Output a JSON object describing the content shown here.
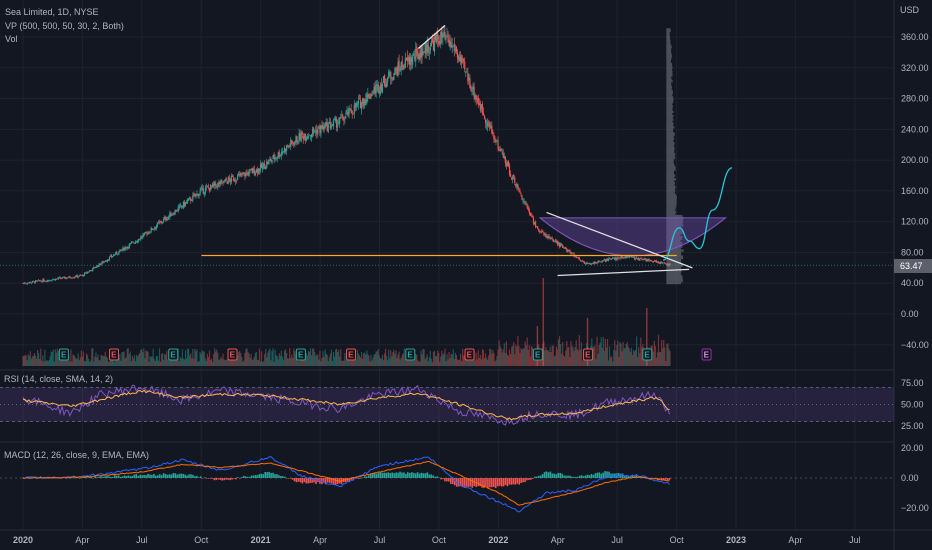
{
  "legend": {
    "main": "Sea Limited, 1D, NYSE",
    "vp": "VP (500, 500, 50, 30, 2, Both)",
    "vol": "Vol",
    "rsi": "RSI (14, close, SMA, 14, 2)",
    "macd": "MACD (12, 26, close, 9, EMA, EMA)"
  },
  "currency": "USD",
  "price_label": "63.47",
  "earnings_marker": "E",
  "colors": {
    "up": "#26a69a",
    "down": "#ef5350",
    "support": "#ffa726",
    "rsi": "#7e57c2",
    "rsi_ma": "#ffb74d",
    "macd": "#2962ff",
    "signal": "#ff6d00",
    "pattern": "#7e57c2",
    "projection": "#26c6da",
    "trendline": "#e0e0e0",
    "vp": "#787b86"
  },
  "chart_data": [
    {
      "type": "candlestick",
      "title": "Sea Limited, 1D, NYSE",
      "ylabel": "USD",
      "x_tick_labels": [
        "2020",
        "Apr",
        "Jul",
        "Oct",
        "2021",
        "Apr",
        "Jul",
        "Oct",
        "2022",
        "Apr",
        "Jul",
        "Oct",
        "2023",
        "Apr",
        "Jul"
      ],
      "y_tick_labels": [
        "360.00",
        "320.00",
        "280.00",
        "240.00",
        "200.00",
        "160.00",
        "120.00",
        "80.00",
        "40.00",
        "0.00",
        "−40.00"
      ],
      "ylim": [
        -55,
        385
      ],
      "last_close": 63.47,
      "anchors": {
        "x": [
          "2020-01-01",
          "2020-04-01",
          "2020-07-01",
          "2020-10-01",
          "2021-01-01",
          "2021-03-01",
          "2021-05-01",
          "2021-08-01",
          "2021-10-05",
          "2021-10-25",
          "2022-01-01",
          "2022-03-01",
          "2022-05-15",
          "2022-07-15",
          "2022-08-25",
          "2022-09-20"
        ],
        "close": [
          40,
          50,
          100,
          160,
          190,
          230,
          250,
          320,
          360,
          345,
          215,
          110,
          65,
          75,
          68,
          63.47
        ]
      },
      "annotations": {
        "support_line": {
          "from": "2020-10-01",
          "to": "2022-10-01",
          "value": 76
        },
        "top_trendline": [
          [
            "2021-08-30",
            345
          ],
          [
            "2021-10-10",
            375
          ]
        ],
        "upper_trendline": [
          [
            "2022-03-15",
            132
          ],
          [
            "2022-10-25",
            60
          ]
        ],
        "lower_trendline": [
          [
            "2022-04-01",
            50
          ],
          [
            "2022-10-20",
            58
          ]
        ],
        "cup_pattern": {
          "from": "2022-03-05",
          "to": "2022-12-15",
          "top": 125,
          "bottom": 65
        },
        "projection": [
          [
            "2022-09-10",
            70
          ],
          [
            "2022-10-05",
            112
          ],
          [
            "2022-10-20",
            95
          ],
          [
            "2022-11-05",
            85
          ],
          [
            "2022-11-25",
            135
          ],
          [
            "2022-12-25",
            190
          ]
        ]
      },
      "earnings_dates": [
        "2020-03-03",
        "2020-05-19",
        "2020-08-18",
        "2020-11-17",
        "2021-03-02",
        "2021-05-18",
        "2021-08-17",
        "2021-11-16",
        "2022-03-01",
        "2022-05-17",
        "2022-08-16",
        "2022-11-15"
      ]
    },
    {
      "type": "line",
      "title": "RSI (14, close, SMA, 14, 2)",
      "y_tick_labels": [
        "75.00",
        "50.00",
        "25.00"
      ],
      "ylim": [
        15,
        85
      ],
      "bands": [
        70,
        50,
        30
      ],
      "x": [
        "2020-01-01",
        "2020-03-15",
        "2020-05-01",
        "2020-07-01",
        "2020-09-01",
        "2020-11-01",
        "2021-01-01",
        "2021-03-01",
        "2021-05-01",
        "2021-07-01",
        "2021-09-01",
        "2021-11-01",
        "2022-01-15",
        "2022-03-01",
        "2022-05-01",
        "2022-06-15",
        "2022-08-01",
        "2022-09-01",
        "2022-09-22"
      ],
      "series": [
        {
          "name": "RSI",
          "values": [
            58,
            40,
            62,
            70,
            55,
            66,
            60,
            52,
            45,
            62,
            68,
            42,
            30,
            40,
            38,
            52,
            58,
            62,
            35
          ]
        },
        {
          "name": "RSI-based MA",
          "values": [
            55,
            48,
            56,
            66,
            58,
            62,
            61,
            56,
            50,
            58,
            63,
            50,
            33,
            38,
            40,
            48,
            55,
            58,
            42
          ]
        }
      ]
    },
    {
      "type": "bar+line",
      "title": "MACD (12, 26, close, 9, EMA, EMA)",
      "y_tick_labels": [
        "20.00",
        "0.00",
        "−20.00"
      ],
      "ylim": [
        -26,
        26
      ],
      "x": [
        "2020-01-01",
        "2020-04-01",
        "2020-07-01",
        "2020-09-01",
        "2020-11-01",
        "2021-01-15",
        "2021-03-01",
        "2021-05-01",
        "2021-07-01",
        "2021-09-15",
        "2021-11-01",
        "2022-01-01",
        "2022-02-01",
        "2022-03-15",
        "2022-05-01",
        "2022-06-15",
        "2022-08-01",
        "2022-09-22"
      ],
      "series": [
        {
          "name": "MACD",
          "values": [
            0,
            1,
            6,
            12,
            5,
            14,
            2,
            -6,
            8,
            14,
            -4,
            -16,
            -22,
            -10,
            -8,
            1,
            2,
            -4
          ]
        },
        {
          "name": "Signal",
          "values": [
            0,
            0.5,
            4,
            9,
            7,
            10,
            5,
            -2,
            4,
            11,
            2,
            -10,
            -18,
            -14,
            -9,
            -3,
            1,
            -2
          ]
        }
      ]
    }
  ]
}
